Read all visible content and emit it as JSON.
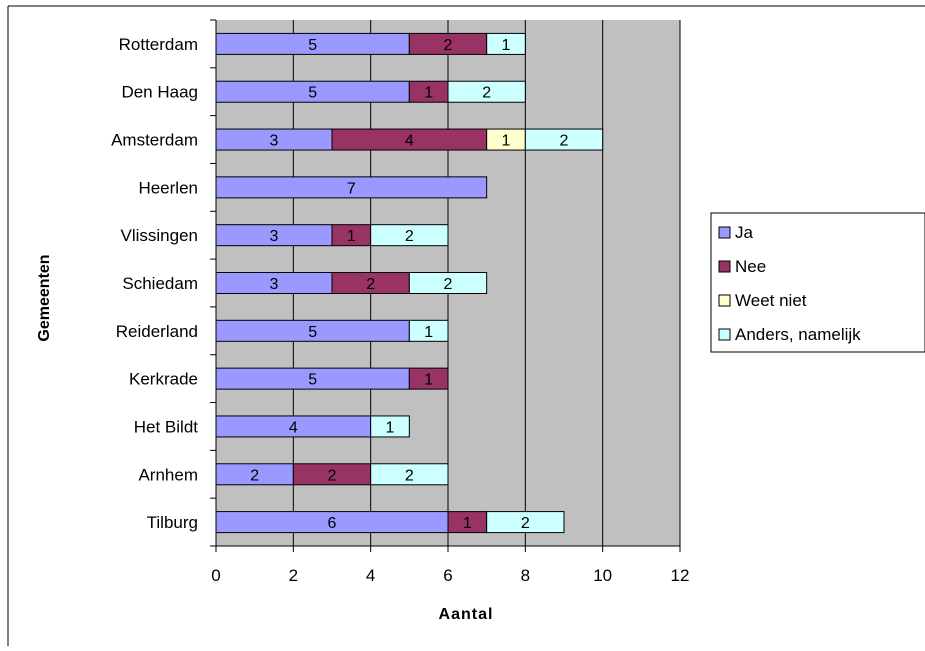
{
  "chart_data": {
    "type": "bar",
    "orientation": "horizontal",
    "stacked": true,
    "categories": [
      "Rotterdam",
      "Den Haag",
      "Amsterdam",
      "Heerlen",
      "Vlissingen",
      "Schiedam",
      "Reiderland",
      "Kerkrade",
      "Het Bildt",
      "Arnhem",
      "Tilburg"
    ],
    "series": [
      {
        "name": "Ja",
        "color": "#9999ff",
        "values": [
          5,
          5,
          3,
          7,
          3,
          3,
          5,
          5,
          4,
          2,
          6
        ]
      },
      {
        "name": "Nee",
        "color": "#993366",
        "values": [
          2,
          1,
          4,
          0,
          1,
          2,
          0,
          1,
          0,
          2,
          1
        ]
      },
      {
        "name": "Weet niet",
        "color": "#ffffcc",
        "values": [
          0,
          0,
          1,
          0,
          0,
          0,
          0,
          0,
          0,
          0,
          0
        ]
      },
      {
        "name": "Anders, namelijk",
        "color": "#ccffff",
        "values": [
          1,
          2,
          2,
          0,
          2,
          2,
          1,
          0,
          1,
          2,
          2
        ]
      }
    ],
    "xlabel": "Aantal",
    "ylabel": "Gemeenten",
    "xlim": [
      0,
      12
    ],
    "xticks": [
      "0",
      "2",
      "4",
      "6",
      "8",
      "10",
      "12"
    ],
    "grid": true,
    "legend_position": "right",
    "plot_background": "#c0c0c0"
  }
}
